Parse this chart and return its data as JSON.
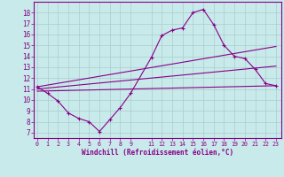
{
  "xlabel": "Windchill (Refroidissement éolien,°C)",
  "bg_color": "#c8eaea",
  "grid_color": "#aacccc",
  "line_color": "#880088",
  "x_ticks": [
    0,
    1,
    2,
    3,
    4,
    5,
    6,
    7,
    8,
    9,
    11,
    12,
    13,
    14,
    15,
    16,
    17,
    18,
    19,
    20,
    21,
    22,
    23
  ],
  "y_ticks": [
    7,
    8,
    9,
    10,
    11,
    12,
    13,
    14,
    15,
    16,
    17,
    18
  ],
  "xlim": [
    -0.3,
    23.5
  ],
  "ylim": [
    6.5,
    19.0
  ],
  "series_main": {
    "x": [
      0,
      1,
      2,
      3,
      4,
      5,
      6,
      7,
      8,
      9,
      11,
      12,
      13,
      14,
      15,
      16,
      17,
      18,
      19,
      20,
      21,
      22,
      23
    ],
    "y": [
      11.2,
      10.6,
      9.9,
      8.8,
      8.3,
      8.0,
      7.1,
      8.2,
      9.3,
      10.6,
      13.9,
      15.9,
      16.4,
      16.6,
      18.0,
      18.3,
      16.9,
      15.0,
      14.0,
      13.8,
      12.8,
      11.5,
      11.3
    ]
  },
  "series_lines": [
    {
      "x": [
        0,
        23
      ],
      "y": [
        11.2,
        14.9
      ]
    },
    {
      "x": [
        0,
        23
      ],
      "y": [
        11.0,
        13.1
      ]
    },
    {
      "x": [
        0,
        23
      ],
      "y": [
        10.8,
        11.3
      ]
    }
  ]
}
